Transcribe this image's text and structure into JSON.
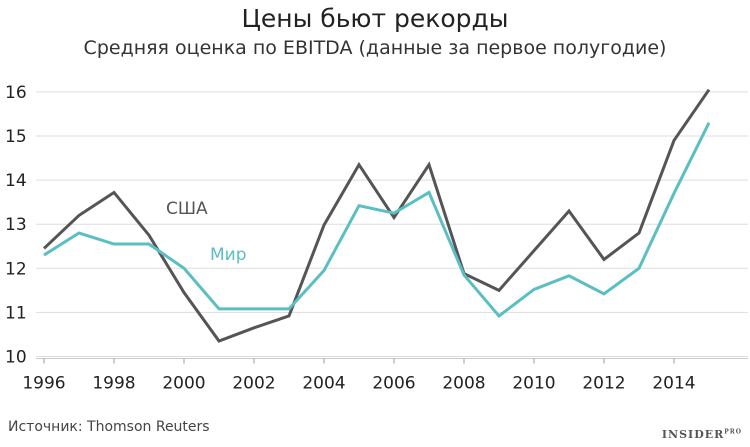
{
  "chart_data": {
    "type": "line",
    "title": "Цены бьют рекорды",
    "subtitle": "Средняя оценка по EBITDA (данные за первое полугодие)",
    "x": [
      1996,
      1997,
      1998,
      1999,
      2000,
      2001,
      2002,
      2003,
      2004,
      2005,
      2006,
      2007,
      2008,
      2009,
      2010,
      2011,
      2012,
      2013,
      2014,
      2015
    ],
    "series": [
      {
        "name": "США",
        "color": "#555555",
        "values": [
          12.45,
          13.2,
          13.72,
          12.75,
          11.45,
          10.35,
          10.65,
          10.92,
          12.98,
          14.35,
          13.15,
          14.35,
          11.88,
          11.5,
          12.4,
          13.3,
          12.2,
          12.8,
          14.9,
          16.05
        ]
      },
      {
        "name": "Мир",
        "color": "#5bbfc2",
        "values": [
          12.3,
          12.8,
          12.55,
          12.55,
          12.0,
          11.08,
          11.08,
          11.08,
          11.95,
          13.42,
          13.25,
          13.72,
          11.85,
          10.92,
          11.52,
          11.83,
          11.42,
          12.0,
          13.7,
          15.3
        ]
      }
    ],
    "xticks": [
      1996,
      1998,
      2000,
      2002,
      2004,
      2006,
      2008,
      2010,
      2012,
      2014
    ],
    "yticks": [
      10,
      11,
      12,
      13,
      14,
      15,
      16
    ],
    "xlim": [
      1996,
      2017
    ],
    "ylim": [
      10,
      16
    ],
    "grid": true
  },
  "source": "Источник: Thomson Reuters",
  "brand": "INSIDER",
  "brand_sup": "PRO"
}
